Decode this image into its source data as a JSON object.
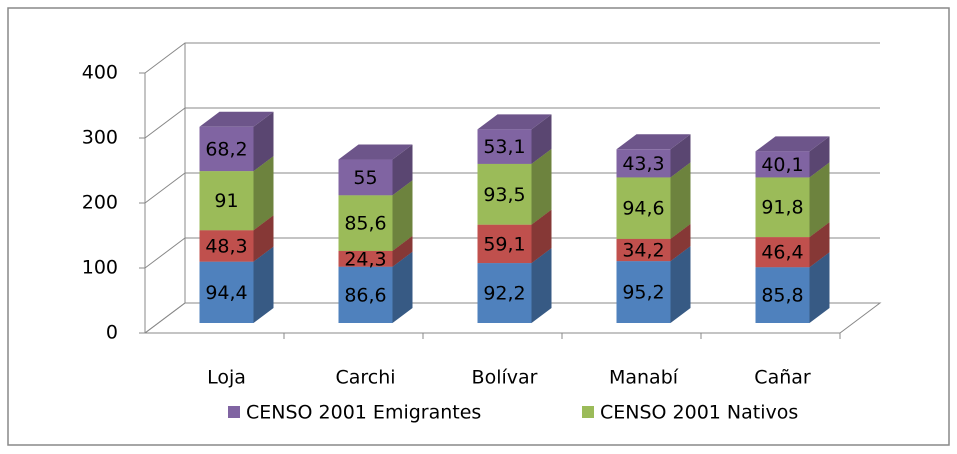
{
  "chart_data": {
    "type": "bar3d_stacked",
    "categories": [
      "Loja",
      "Carchi",
      "Bolívar",
      "Manabí",
      "Cañar"
    ],
    "series": [
      {
        "color": "#4f81bd",
        "values": [
          94.4,
          86.6,
          92.2,
          95.2,
          85.8
        ],
        "value_labels": [
          "94,4",
          "86,6",
          "92,2",
          "95,2",
          "85,8"
        ]
      },
      {
        "color": "#c0504d",
        "values": [
          48.3,
          24.3,
          59.1,
          34.2,
          46.4
        ],
        "value_labels": [
          "48,3",
          "24,3",
          "59,1",
          "34,2",
          "46,4"
        ]
      },
      {
        "name": "CENSO 2001 Nativos",
        "color": "#9bbb59",
        "values": [
          91,
          85.6,
          93.5,
          94.6,
          91.8
        ],
        "value_labels": [
          "91",
          "85,6",
          "93,5",
          "94,6",
          "91,8"
        ]
      },
      {
        "name": "CENSO 2001 Emigrantes",
        "color": "#8064a2",
        "values": [
          68.2,
          55,
          53.1,
          43.3,
          40.1
        ],
        "value_labels": [
          "68,2",
          "55",
          "53,1",
          "43,3",
          "40,1"
        ]
      }
    ],
    "ylim": [
      0,
      400
    ],
    "yticks": [
      0,
      100,
      200,
      300,
      400
    ],
    "grid": true
  }
}
